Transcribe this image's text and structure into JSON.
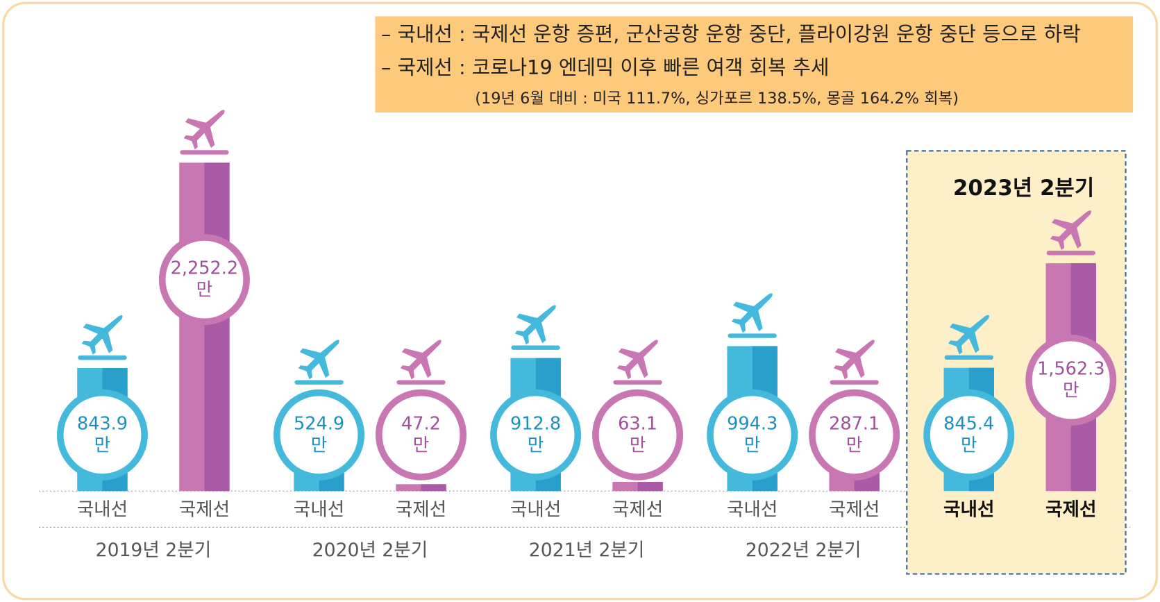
{
  "chart_data": {
    "type": "bar",
    "notes": [
      "– 국내선 :  국제선 운항 증편, 군산공항 운항 중단, 플라이강원 운항 중단 등으로 하락",
      "– 국제선 :  코로나19 엔데믹 이후 빠른 여객 회복 추세",
      "(19년 6월 대비 : 미국 111.7%, 싱가포르 138.5%, 몽골 164.2% 회복)"
    ],
    "categories": [
      "2019년 2분기",
      "2020년 2분기",
      "2021년 2분기",
      "2022년 2분기",
      "2023년 2분기"
    ],
    "highlight": "2023년 2분기",
    "unit": "만",
    "series": [
      {
        "name": "국내선",
        "color": "#45b9dc",
        "shade": "#2a9fcc",
        "label_color": "#1a8fc0",
        "values": [
          843.9,
          524.9,
          912.8,
          994.3,
          845.4
        ],
        "value_labels": [
          "843.9",
          "524.9",
          "912.8",
          "994.3",
          "845.4"
        ]
      },
      {
        "name": "국제선",
        "color": "#c877b3",
        "shade": "#a95ba6",
        "label_color": "#a04f9a",
        "values": [
          2252.2,
          47.2,
          63.1,
          287.1,
          1562.3
        ],
        "value_labels": [
          "2,252.2",
          "47.2",
          "63.1",
          "287.1",
          "1,562.3"
        ]
      }
    ]
  }
}
